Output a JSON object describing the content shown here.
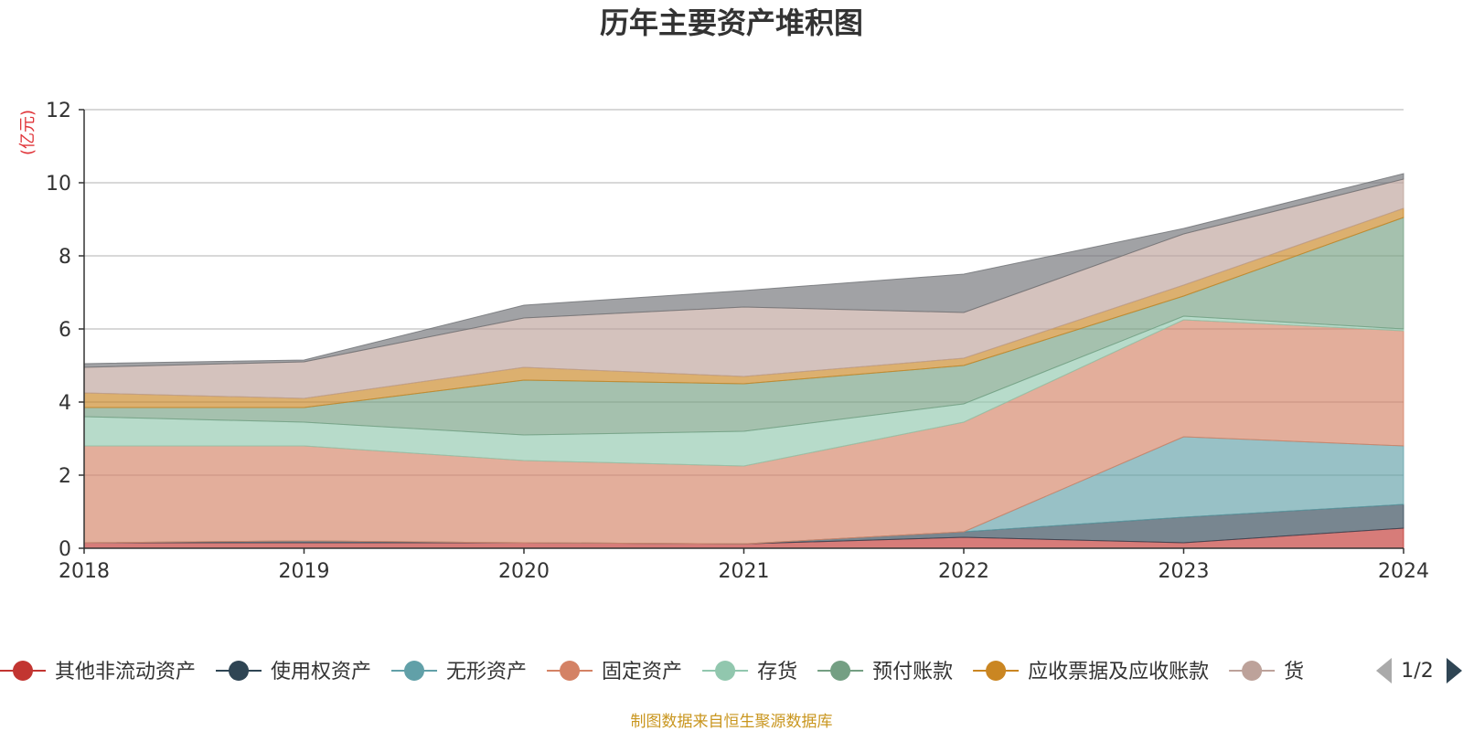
{
  "chart_data": {
    "type": "area",
    "stacked": true,
    "title": "历年主要资产堆积图",
    "ylabel": "(亿元)",
    "ylim": [
      0,
      12
    ],
    "yticks": [
      0,
      2,
      4,
      6,
      8,
      10,
      12
    ],
    "grid": true,
    "legend_placement": "bottom",
    "x": [
      "2018",
      "2019",
      "2020",
      "2021",
      "2022",
      "2023",
      "2024"
    ],
    "series": [
      {
        "name": "其他非流动资产",
        "color": "#c23531",
        "values": [
          0.15,
          0.15,
          0.15,
          0.12,
          0.3,
          0.15,
          0.55
        ]
      },
      {
        "name": "使用权资产",
        "color": "#2f4554",
        "values": [
          0.0,
          0.05,
          0.0,
          0.0,
          0.15,
          0.7,
          0.65
        ]
      },
      {
        "name": "无形资产",
        "color": "#61a0a8",
        "values": [
          0.0,
          0.0,
          0.0,
          0.0,
          0.0,
          2.2,
          1.6
        ]
      },
      {
        "name": "固定资产",
        "color": "#d48265",
        "values": [
          2.65,
          2.6,
          2.25,
          2.13,
          3.0,
          3.2,
          3.15
        ]
      },
      {
        "name": "存货",
        "color": "#91c7ae",
        "values": [
          0.8,
          0.65,
          0.7,
          0.95,
          0.5,
          0.1,
          0.05
        ]
      },
      {
        "name": "预付账款",
        "color": "#749f83",
        "values": [
          0.25,
          0.4,
          1.5,
          1.3,
          1.05,
          0.55,
          3.05
        ]
      },
      {
        "name": "应收票据及应收账款",
        "color": "#ca8622",
        "values": [
          0.4,
          0.25,
          0.35,
          0.2,
          0.2,
          0.3,
          0.25
        ]
      },
      {
        "name": "货币资金",
        "color": "#bda29a",
        "values": [
          0.7,
          1.0,
          1.35,
          1.9,
          1.25,
          1.4,
          0.8
        ]
      },
      {
        "name": "",
        "color": "#6e7074",
        "values": [
          0.1,
          0.05,
          0.35,
          0.45,
          1.05,
          0.15,
          0.15
        ]
      }
    ]
  },
  "legend": {
    "page": "1/2",
    "items": [
      {
        "label": "其他非流动资产",
        "color": "#c23531"
      },
      {
        "label": "使用权资产",
        "color": "#2f4554"
      },
      {
        "label": "无形资产",
        "color": "#61a0a8"
      },
      {
        "label": "固定资产",
        "color": "#d48265"
      },
      {
        "label": "存货",
        "color": "#91c7ae"
      },
      {
        "label": "预付账款",
        "color": "#749f83"
      },
      {
        "label": "应收票据及应收账款",
        "color": "#ca8622"
      },
      {
        "label": "货",
        "color": "#bda29a"
      }
    ]
  },
  "source": "制图数据来自恒生聚源数据库"
}
